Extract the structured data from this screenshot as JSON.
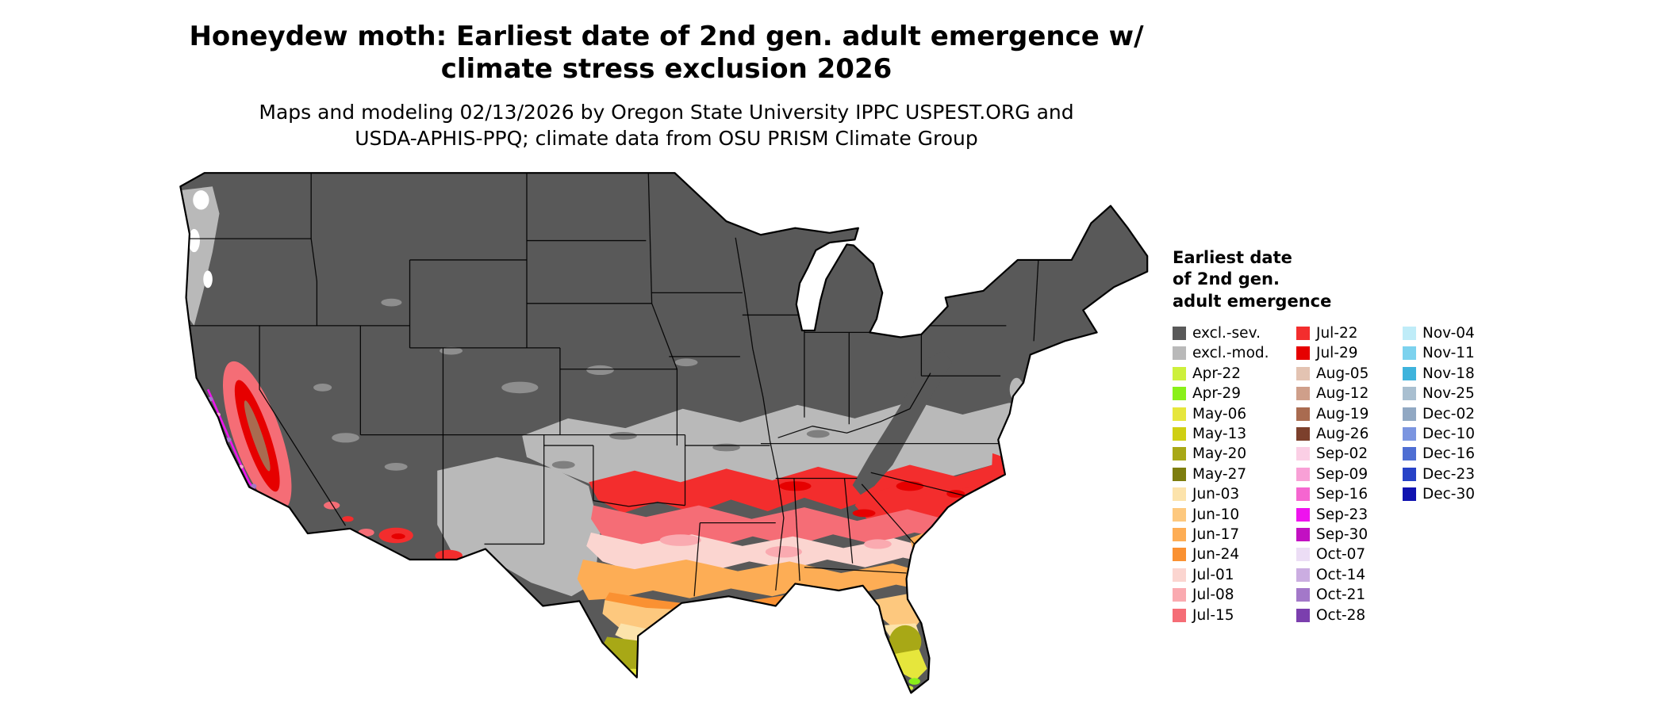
{
  "title": {
    "line1": "Honeydew moth: Earliest date of 2nd gen. adult emergence w/",
    "line2": "climate stress exclusion 2026"
  },
  "subtitle": {
    "line1": "Maps and modeling 02/13/2026 by Oregon State University IPPC USPEST.ORG and",
    "line2": "USDA-APHIS-PPQ; climate data from OSU PRISM Climate Group"
  },
  "legend": {
    "title_lines": [
      "Earliest date",
      "of 2nd gen.",
      "adult emergence"
    ],
    "columns": [
      {
        "entries": [
          {
            "label": "excl.-sev.",
            "color": "#595959"
          },
          {
            "label": "excl.-mod.",
            "color": "#b9b9b9"
          },
          {
            "label": "Apr-22",
            "color": "#cdf03c"
          },
          {
            "label": "Apr-29",
            "color": "#8af019"
          },
          {
            "label": "May-06",
            "color": "#e6e63c"
          },
          {
            "label": "May-13",
            "color": "#cfcf12"
          },
          {
            "label": "May-20",
            "color": "#a8a816"
          },
          {
            "label": "May-27",
            "color": "#7d7d0e"
          },
          {
            "label": "Jun-03",
            "color": "#fce3ab"
          },
          {
            "label": "Jun-10",
            "color": "#fdc87e"
          },
          {
            "label": "Jun-17",
            "color": "#fdad55"
          },
          {
            "label": "Jun-24",
            "color": "#fa9132"
          },
          {
            "label": "Jul-01",
            "color": "#fbd5d0"
          },
          {
            "label": "Jul-08",
            "color": "#faaab0"
          },
          {
            "label": "Jul-15",
            "color": "#f56d76"
          }
        ]
      },
      {
        "entries": [
          {
            "label": "Jul-22",
            "color": "#f32d2d"
          },
          {
            "label": "Jul-29",
            "color": "#e60000"
          },
          {
            "label": "Aug-05",
            "color": "#e3c3b2"
          },
          {
            "label": "Aug-12",
            "color": "#cf9f8a"
          },
          {
            "label": "Aug-19",
            "color": "#a96b50"
          },
          {
            "label": "Aug-26",
            "color": "#7c402c"
          },
          {
            "label": "Sep-02",
            "color": "#fbcfe5"
          },
          {
            "label": "Sep-09",
            "color": "#f8a0d6"
          },
          {
            "label": "Sep-16",
            "color": "#f566d0"
          },
          {
            "label": "Sep-23",
            "color": "#ee13ee"
          },
          {
            "label": "Sep-30",
            "color": "#c210c2"
          },
          {
            "label": "Oct-07",
            "color": "#ecddf5"
          },
          {
            "label": "Oct-14",
            "color": "#cbade1"
          },
          {
            "label": "Oct-21",
            "color": "#a378c9"
          },
          {
            "label": "Oct-28",
            "color": "#7b3fae"
          }
        ]
      },
      {
        "entries": [
          {
            "label": "Nov-04",
            "color": "#bfecf8"
          },
          {
            "label": "Nov-11",
            "color": "#7cd2ee"
          },
          {
            "label": "Nov-18",
            "color": "#3eb3dc"
          },
          {
            "label": "Nov-25",
            "color": "#a9bfd0"
          },
          {
            "label": "Dec-02",
            "color": "#91a8c3"
          },
          {
            "label": "Dec-10",
            "color": "#7b95e0"
          },
          {
            "label": "Dec-16",
            "color": "#4e6ed3"
          },
          {
            "label": "Dec-23",
            "color": "#2742c7"
          },
          {
            "label": "Dec-30",
            "color": "#1013b0"
          }
        ]
      }
    ]
  },
  "map": {
    "no_data_color": "#ffffff",
    "outline_color": "#000000",
    "background_color": "#ffffff"
  }
}
